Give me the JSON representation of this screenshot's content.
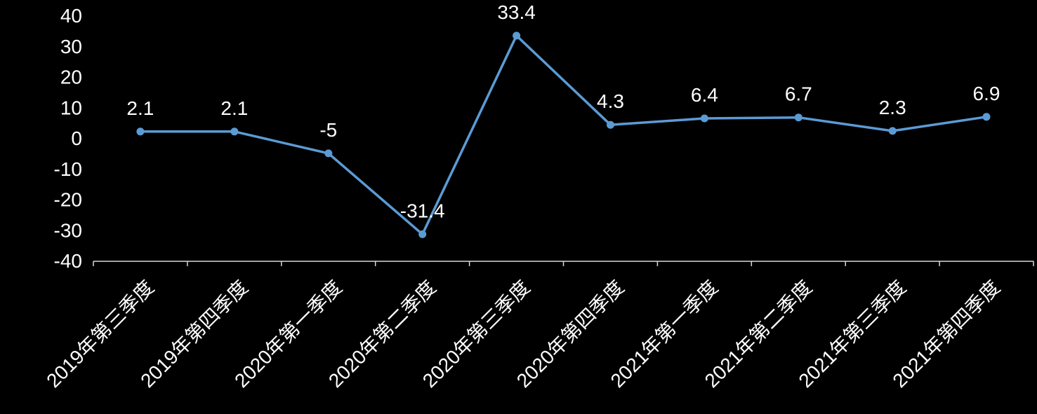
{
  "chart_data": {
    "type": "line",
    "categories": [
      "2019年第三季度",
      "2019年第四季度",
      "2020年第一季度",
      "2020年第二季度",
      "2020年第三季度",
      "2020年第四季度",
      "2021年第一季度",
      "2021年第二季度",
      "2021年第三季度",
      "2021年第四季度"
    ],
    "series": [
      {
        "values": [
          2.1,
          2.1,
          -5,
          -31.4,
          33.4,
          4.3,
          6.4,
          6.7,
          2.3,
          6.9
        ]
      }
    ],
    "ylim": [
      -40,
      40
    ],
    "yticks": [
      40,
      30,
      20,
      10,
      0,
      -10,
      -20,
      -30,
      -40
    ],
    "data_labels": true,
    "markers": true,
    "grid": false,
    "legend": false,
    "colors": {
      "background": "#000000",
      "line": "#5B9BD5",
      "axis": "#D9D9D9",
      "text": "#FFFFFF"
    }
  }
}
